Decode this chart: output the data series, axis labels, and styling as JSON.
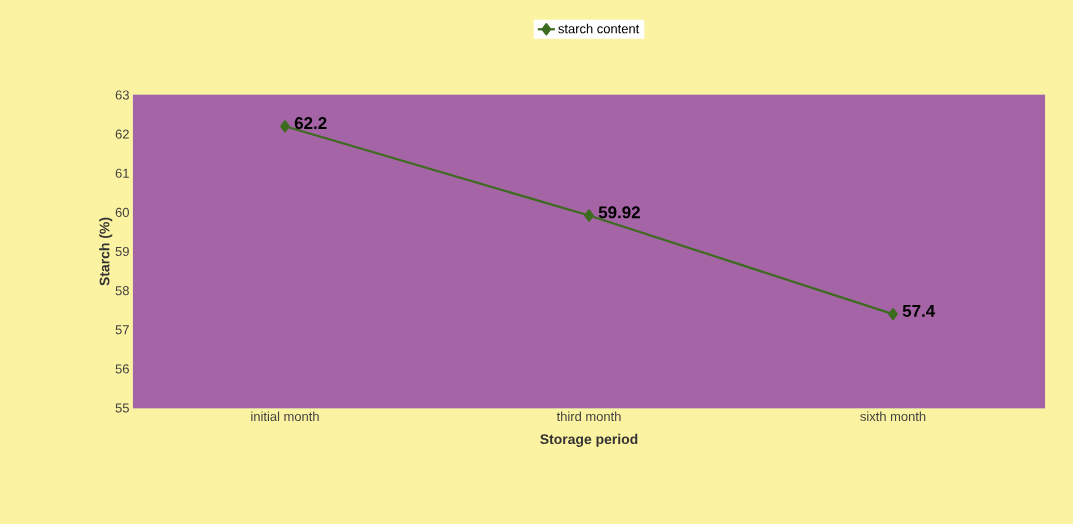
{
  "chart_data": {
    "type": "line",
    "xlabel": "Storage period",
    "ylabel": "Starch (%)",
    "categories": [
      "initial month",
      "third month",
      "sixth month"
    ],
    "series": [
      {
        "name": "starch content",
        "color": "#3d6b1f",
        "values": [
          62.2,
          59.92,
          57.4
        ]
      }
    ],
    "ylim": [
      55,
      63
    ],
    "yticks": [
      55,
      56,
      57,
      58,
      59,
      60,
      61,
      62,
      63
    ],
    "grid": "y",
    "legend": "top",
    "marker": "diamond",
    "line_style": "solid",
    "data_labels": true
  }
}
